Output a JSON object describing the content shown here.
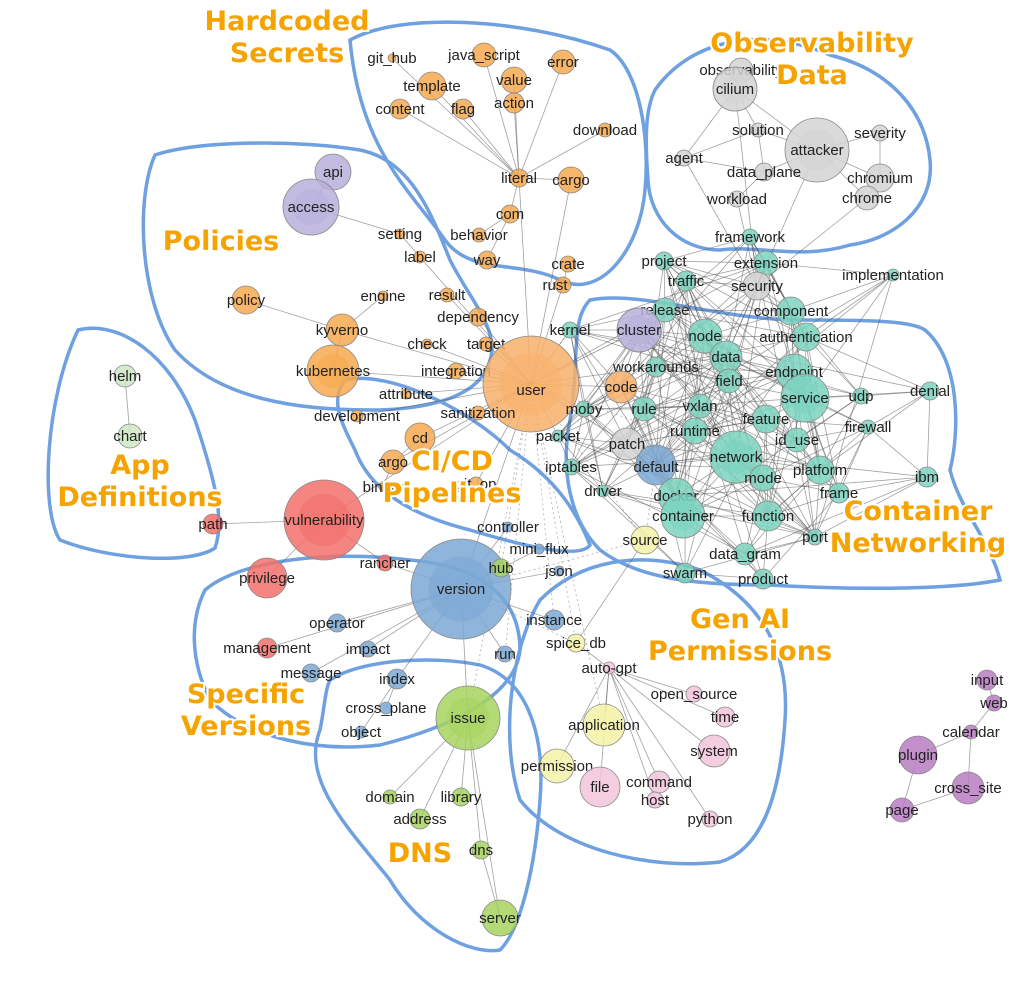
{
  "colors": {
    "secrets": "#f6a94f",
    "observability": "#d4d4d4",
    "networking": "#7cd3c0",
    "cicd": "#f6a94f",
    "policies": "#b8b0db",
    "appdef": "#cfe8c4",
    "vulnerability": "#f2706b",
    "versions": "#7ba8d4",
    "dns": "#a7d35f",
    "genai_yellow": "#f5f2a8",
    "genai_pink": "#f2c4dc",
    "plugin": "#b97cc3",
    "user": "#f8b06a",
    "boundary": "#6fa0e0",
    "title": "#f5a300"
  },
  "clusters": [
    {
      "title": "Hardcoded\nSecrets"
    },
    {
      "title": "Observability\nData"
    },
    {
      "title": "Policies"
    },
    {
      "title": "App\nDefinitions"
    },
    {
      "title": "CI/CD\nPipelines"
    },
    {
      "title": "Container\nNetworking"
    },
    {
      "title": "Specific\nVersions"
    },
    {
      "title": "Gen AI\nPermissions"
    },
    {
      "title": "DNS"
    }
  ],
  "nodes": [
    {
      "id": "git_hub",
      "label": "git_hub",
      "group": "secrets"
    },
    {
      "id": "java_script",
      "label": "java_script",
      "group": "secrets"
    },
    {
      "id": "error",
      "label": "error",
      "group": "secrets"
    },
    {
      "id": "template",
      "label": "template",
      "group": "secrets"
    },
    {
      "id": "value",
      "label": "value",
      "group": "secrets"
    },
    {
      "id": "content",
      "label": "content",
      "group": "secrets"
    },
    {
      "id": "flag",
      "label": "flag",
      "group": "secrets"
    },
    {
      "id": "action",
      "label": "action",
      "group": "secrets"
    },
    {
      "id": "download",
      "label": "download",
      "group": "secrets"
    },
    {
      "id": "literal",
      "label": "literal",
      "group": "secrets"
    },
    {
      "id": "cargo",
      "label": "cargo",
      "group": "secrets"
    },
    {
      "id": "com",
      "label": "com",
      "group": "secrets"
    },
    {
      "id": "behavior",
      "label": "behavior",
      "group": "secrets"
    },
    {
      "id": "way",
      "label": "way",
      "group": "secrets"
    },
    {
      "id": "crate",
      "label": "crate",
      "group": "secrets"
    },
    {
      "id": "rust",
      "label": "rust",
      "group": "secrets"
    },
    {
      "id": "observability",
      "label": "observability",
      "group": "observability"
    },
    {
      "id": "cilium",
      "label": "cilium",
      "group": "observability"
    },
    {
      "id": "solution",
      "label": "solution",
      "group": "observability"
    },
    {
      "id": "severity",
      "label": "severity",
      "group": "observability"
    },
    {
      "id": "attacker",
      "label": "attacker",
      "group": "observability"
    },
    {
      "id": "agent",
      "label": "agent",
      "group": "observability"
    },
    {
      "id": "data_plane",
      "label": "data_plane",
      "group": "observability"
    },
    {
      "id": "chromium",
      "label": "chromium",
      "group": "observability"
    },
    {
      "id": "workload",
      "label": "workload",
      "group": "observability"
    },
    {
      "id": "chrome",
      "label": "chrome",
      "group": "observability"
    },
    {
      "id": "api",
      "label": "api",
      "group": "policies"
    },
    {
      "id": "access",
      "label": "access",
      "group": "policies"
    },
    {
      "id": "setting",
      "label": "setting",
      "group": "cicd"
    },
    {
      "id": "label",
      "label": "label",
      "group": "cicd"
    },
    {
      "id": "policy",
      "label": "policy",
      "group": "cicd"
    },
    {
      "id": "engine",
      "label": "engine",
      "group": "cicd"
    },
    {
      "id": "result",
      "label": "result",
      "group": "cicd"
    },
    {
      "id": "dependency",
      "label": "dependency",
      "group": "cicd"
    },
    {
      "id": "kyverno",
      "label": "kyverno",
      "group": "cicd"
    },
    {
      "id": "check",
      "label": "check",
      "group": "cicd"
    },
    {
      "id": "target",
      "label": "target",
      "group": "cicd"
    },
    {
      "id": "kubernetes",
      "label": "kubernetes",
      "group": "cicd"
    },
    {
      "id": "integration",
      "label": "integration",
      "group": "cicd"
    },
    {
      "id": "user",
      "label": "user",
      "group": "user"
    },
    {
      "id": "attribute",
      "label": "attribute",
      "group": "cicd"
    },
    {
      "id": "development",
      "label": "development",
      "group": "cicd"
    },
    {
      "id": "sanitization",
      "label": "sanitization",
      "group": "cicd"
    },
    {
      "id": "cd",
      "label": "cd",
      "group": "cicd"
    },
    {
      "id": "argo",
      "label": "argo",
      "group": "cicd"
    },
    {
      "id": "binary",
      "label": "binary",
      "group": "cicd"
    },
    {
      "id": "git_op",
      "label": "git_op",
      "group": "cicd"
    },
    {
      "id": "helm",
      "label": "helm",
      "group": "appdef"
    },
    {
      "id": "chart",
      "label": "chart",
      "group": "appdef"
    },
    {
      "id": "path",
      "label": "path",
      "group": "vulnerability"
    },
    {
      "id": "vulnerability",
      "label": "vulnerability",
      "group": "vulnerability"
    },
    {
      "id": "privilege",
      "label": "privilege",
      "group": "vulnerability"
    },
    {
      "id": "rancher",
      "label": "rancher",
      "group": "vulnerability"
    },
    {
      "id": "management",
      "label": "management",
      "group": "vulnerability"
    },
    {
      "id": "version",
      "label": "version",
      "group": "versions"
    },
    {
      "id": "operator",
      "label": "operator",
      "group": "versions"
    },
    {
      "id": "impact",
      "label": "impact",
      "group": "versions"
    },
    {
      "id": "message",
      "label": "message",
      "group": "versions"
    },
    {
      "id": "index",
      "label": "index",
      "group": "versions"
    },
    {
      "id": "cross_plane",
      "label": "cross_plane",
      "group": "versions"
    },
    {
      "id": "object",
      "label": "object",
      "group": "versions"
    },
    {
      "id": "controller",
      "label": "controller",
      "group": "versions"
    },
    {
      "id": "mini_flux",
      "label": "mini_flux",
      "group": "versions"
    },
    {
      "id": "hub",
      "label": "hub",
      "group": "dns"
    },
    {
      "id": "json",
      "label": "json",
      "group": "versions"
    },
    {
      "id": "instance",
      "label": "instance",
      "group": "versions"
    },
    {
      "id": "run",
      "label": "run",
      "group": "versions"
    },
    {
      "id": "issue",
      "label": "issue",
      "group": "dns"
    },
    {
      "id": "domain",
      "label": "domain",
      "group": "dns"
    },
    {
      "id": "library",
      "label": "library",
      "group": "dns"
    },
    {
      "id": "address",
      "label": "address",
      "group": "dns"
    },
    {
      "id": "dns",
      "label": "dns",
      "group": "dns"
    },
    {
      "id": "server",
      "label": "server",
      "group": "dns"
    },
    {
      "id": "source",
      "label": "source",
      "group": "genai_yellow"
    },
    {
      "id": "spice_db",
      "label": "spice_db",
      "group": "genai_yellow"
    },
    {
      "id": "auto_gpt",
      "label": "auto-gpt",
      "group": "genai_pink"
    },
    {
      "id": "open_source",
      "label": "open_source",
      "group": "genai_pink"
    },
    {
      "id": "application",
      "label": "application",
      "group": "genai_yellow"
    },
    {
      "id": "time",
      "label": "time",
      "group": "genai_pink"
    },
    {
      "id": "system",
      "label": "system",
      "group": "genai_pink"
    },
    {
      "id": "permission",
      "label": "permission",
      "group": "genai_yellow"
    },
    {
      "id": "file",
      "label": "file",
      "group": "genai_pink"
    },
    {
      "id": "command",
      "label": "command",
      "group": "genai_pink"
    },
    {
      "id": "host",
      "label": "host",
      "group": "genai_pink"
    },
    {
      "id": "python",
      "label": "python",
      "group": "genai_pink"
    },
    {
      "id": "project",
      "label": "project",
      "group": "networking"
    },
    {
      "id": "framework",
      "label": "framework",
      "group": "networking"
    },
    {
      "id": "traffic",
      "label": "traffic",
      "group": "networking"
    },
    {
      "id": "extension",
      "label": "extension",
      "group": "networking"
    },
    {
      "id": "security",
      "label": "security",
      "group": "observability"
    },
    {
      "id": "implementation",
      "label": "implementation",
      "group": "networking"
    },
    {
      "id": "release",
      "label": "release",
      "group": "networking"
    },
    {
      "id": "component",
      "label": "component",
      "group": "networking"
    },
    {
      "id": "cluster",
      "label": "cluster",
      "group": "policies"
    },
    {
      "id": "kernel",
      "label": "kernel",
      "group": "networking"
    },
    {
      "id": "node",
      "label": "node",
      "group": "networking"
    },
    {
      "id": "authentication",
      "label": "authentication",
      "group": "networking"
    },
    {
      "id": "data",
      "label": "data",
      "group": "networking"
    },
    {
      "id": "workarounds",
      "label": "workarounds",
      "group": "networking"
    },
    {
      "id": "endpoint",
      "label": "endpoint",
      "group": "networking"
    },
    {
      "id": "code",
      "label": "code",
      "group": "user"
    },
    {
      "id": "field",
      "label": "field",
      "group": "networking"
    },
    {
      "id": "denial",
      "label": "denial",
      "group": "networking"
    },
    {
      "id": "service",
      "label": "service",
      "group": "networking"
    },
    {
      "id": "udp",
      "label": "udp",
      "group": "networking"
    },
    {
      "id": "moby",
      "label": "moby",
      "group": "networking"
    },
    {
      "id": "rule",
      "label": "rule",
      "group": "networking"
    },
    {
      "id": "vxlan",
      "label": "vxlan",
      "group": "networking"
    },
    {
      "id": "feature",
      "label": "feature",
      "group": "networking"
    },
    {
      "id": "packet",
      "label": "packet",
      "group": "networking"
    },
    {
      "id": "firewall",
      "label": "firewall",
      "group": "networking"
    },
    {
      "id": "runtime",
      "label": "runtime",
      "group": "networking"
    },
    {
      "id": "id_use",
      "label": "id_use",
      "group": "networking"
    },
    {
      "id": "patch",
      "label": "patch",
      "group": "observability"
    },
    {
      "id": "network",
      "label": "network",
      "group": "networking"
    },
    {
      "id": "iptables",
      "label": "iptables",
      "group": "networking"
    },
    {
      "id": "default",
      "label": "default",
      "group": "versions"
    },
    {
      "id": "platform",
      "label": "platform",
      "group": "networking"
    },
    {
      "id": "mode",
      "label": "mode",
      "group": "networking"
    },
    {
      "id": "ibm",
      "label": "ibm",
      "group": "networking"
    },
    {
      "id": "driver",
      "label": "driver",
      "group": "networking"
    },
    {
      "id": "docker",
      "label": "docker",
      "group": "networking"
    },
    {
      "id": "frame",
      "label": "frame",
      "group": "networking"
    },
    {
      "id": "container",
      "label": "container",
      "group": "networking"
    },
    {
      "id": "function",
      "label": "function",
      "group": "networking"
    },
    {
      "id": "port",
      "label": "port",
      "group": "networking"
    },
    {
      "id": "data_gram",
      "label": "data_gram",
      "group": "networking"
    },
    {
      "id": "swarm",
      "label": "swarm",
      "group": "networking"
    },
    {
      "id": "product",
      "label": "product",
      "group": "networking"
    },
    {
      "id": "input",
      "label": "input",
      "group": "plugin"
    },
    {
      "id": "web",
      "label": "web",
      "group": "plugin"
    },
    {
      "id": "calendar",
      "label": "calendar",
      "group": "plugin"
    },
    {
      "id": "plugin",
      "label": "plugin",
      "group": "plugin"
    },
    {
      "id": "cross_site",
      "label": "cross_site",
      "group": "plugin"
    },
    {
      "id": "page",
      "label": "page",
      "group": "plugin"
    }
  ]
}
